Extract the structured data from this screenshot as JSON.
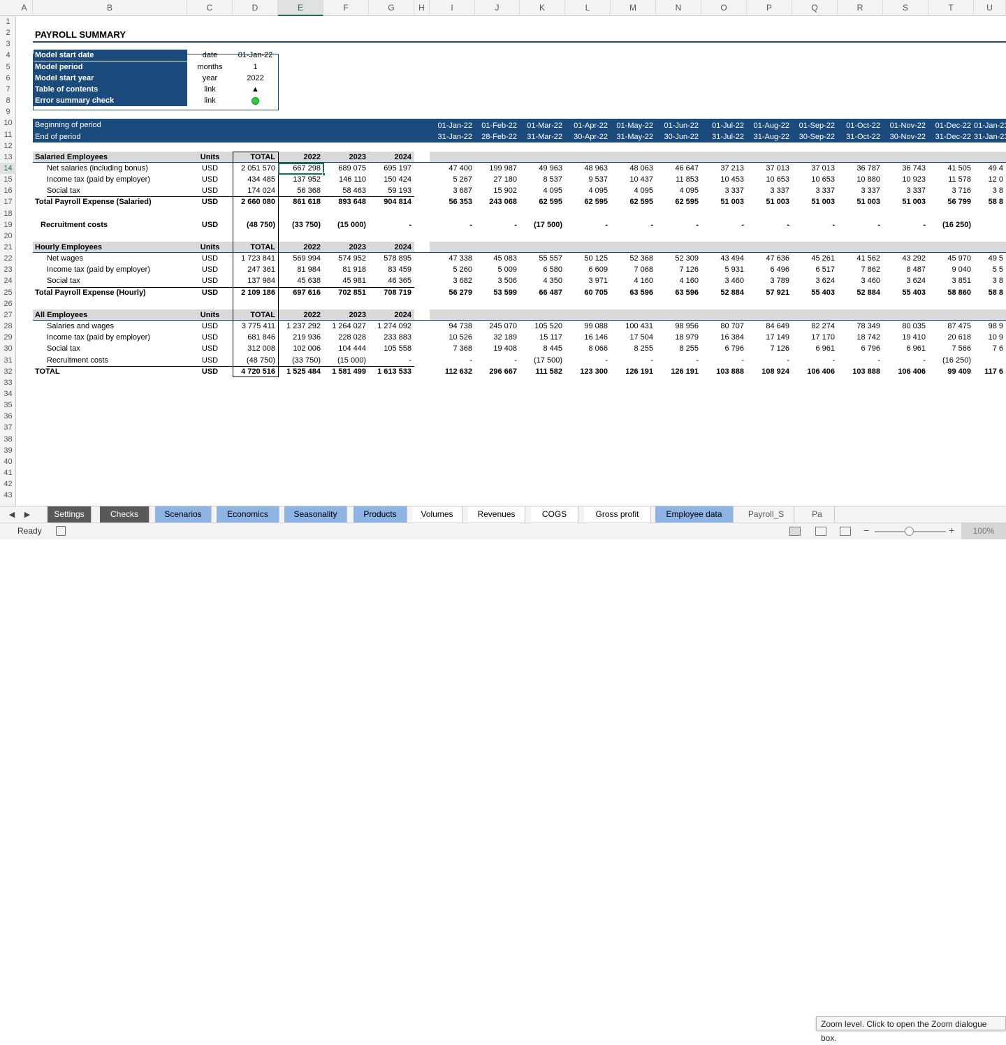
{
  "columns": [
    "A",
    "B",
    "C",
    "D",
    "E",
    "F",
    "G",
    "H",
    "I",
    "J",
    "K",
    "L",
    "M",
    "N",
    "O",
    "P",
    "Q",
    "R",
    "S",
    "T",
    "U"
  ],
  "selected_column": "E",
  "rows": [
    "1",
    "2",
    "3",
    "4",
    "5",
    "6",
    "7",
    "8",
    "9",
    "10",
    "11",
    "12",
    "13",
    "14",
    "15",
    "16",
    "17",
    "18",
    "19",
    "20",
    "21",
    "22",
    "23",
    "24",
    "25",
    "26",
    "27",
    "28",
    "29",
    "30",
    "31",
    "32",
    "33",
    "34",
    "35",
    "36",
    "37",
    "38",
    "39",
    "40",
    "41",
    "42",
    "43"
  ],
  "selected_row": "14",
  "title": "PAYROLL SUMMARY",
  "settings": [
    {
      "label": "Model start date",
      "unit": "date",
      "value": "01-Jan-22"
    },
    {
      "label": "Model period",
      "unit": "months",
      "value": "1"
    },
    {
      "label": "Model start year",
      "unit": "year",
      "value": "2022"
    },
    {
      "label": "Table of contents",
      "unit": "link",
      "value": "▲"
    },
    {
      "label": "Error summary check",
      "unit": "link",
      "value": ""
    }
  ],
  "timeline": {
    "begin_label": "Beginning of period",
    "end_label": "End of period",
    "begin": [
      "01-Jan-22",
      "01-Feb-22",
      "01-Mar-22",
      "01-Apr-22",
      "01-May-22",
      "01-Jun-22",
      "01-Jul-22",
      "01-Aug-22",
      "01-Sep-22",
      "01-Oct-22",
      "01-Nov-22",
      "01-Dec-22",
      "01-Jan-23"
    ],
    "end": [
      "31-Jan-22",
      "28-Feb-22",
      "31-Mar-22",
      "30-Apr-22",
      "31-May-22",
      "30-Jun-22",
      "31-Jul-22",
      "31-Aug-22",
      "30-Sep-22",
      "31-Oct-22",
      "30-Nov-22",
      "31-Dec-22",
      "31-Jan-23"
    ]
  },
  "header_labels": {
    "units": "Units",
    "total": "TOTAL",
    "y2022": "2022",
    "y2023": "2023",
    "y2024": "2024"
  },
  "salaried": {
    "title": "Salaried Employees",
    "rows": [
      {
        "label": "Net salaries (including bonus)",
        "units": "USD",
        "total": "2 051 570",
        "y": [
          "667 298",
          "689 075",
          "695 197"
        ],
        "m": [
          "47 400",
          "199 987",
          "49 963",
          "48 963",
          "48 063",
          "46 647",
          "37 213",
          "37 013",
          "37 013",
          "36 787",
          "36 743",
          "41 505",
          "49 4"
        ]
      },
      {
        "label": "Income tax (paid by employer)",
        "units": "USD",
        "total": "434 485",
        "y": [
          "137 952",
          "146 110",
          "150 424"
        ],
        "m": [
          "5 267",
          "27 180",
          "8 537",
          "9 537",
          "10 437",
          "11 853",
          "10 453",
          "10 653",
          "10 653",
          "10 880",
          "10 923",
          "11 578",
          "12 0"
        ]
      },
      {
        "label": "Social tax",
        "units": "USD",
        "total": "174 024",
        "y": [
          "56 368",
          "58 463",
          "59 193"
        ],
        "m": [
          "3 687",
          "15 902",
          "4 095",
          "4 095",
          "4 095",
          "4 095",
          "3 337",
          "3 337",
          "3 337",
          "3 337",
          "3 337",
          "3 716",
          "3 8"
        ]
      }
    ],
    "total": {
      "label": "Total Payroll Expense (Salaried)",
      "units": "USD",
      "total": "2 660 080",
      "y": [
        "861 618",
        "893 648",
        "904 814"
      ],
      "m": [
        "56 353",
        "243 068",
        "62 595",
        "62 595",
        "62 595",
        "62 595",
        "51 003",
        "51 003",
        "51 003",
        "51 003",
        "51 003",
        "56 799",
        "58 8"
      ]
    }
  },
  "recruitment": {
    "label": "Recruitment costs",
    "units": "USD",
    "total": "(48 750)",
    "y": [
      "(33 750)",
      "(15 000)",
      "-"
    ],
    "m": [
      "-",
      "-",
      "(17 500)",
      "-",
      "-",
      "-",
      "-",
      "-",
      "-",
      "-",
      "-",
      "(16 250)",
      ""
    ]
  },
  "hourly": {
    "title": "Hourly Employees",
    "rows": [
      {
        "label": "Net wages",
        "units": "USD",
        "total": "1 723 841",
        "y": [
          "569 994",
          "574 952",
          "578 895"
        ],
        "m": [
          "47 338",
          "45 083",
          "55 557",
          "50 125",
          "52 368",
          "52 309",
          "43 494",
          "47 636",
          "45 261",
          "41 562",
          "43 292",
          "45 970",
          "49 5"
        ]
      },
      {
        "label": "Income tax (paid by employer)",
        "units": "USD",
        "total": "247 361",
        "y": [
          "81 984",
          "81 918",
          "83 459"
        ],
        "m": [
          "5 260",
          "5 009",
          "6 580",
          "6 609",
          "7 068",
          "7 126",
          "5 931",
          "6 496",
          "6 517",
          "7 862",
          "8 487",
          "9 040",
          "5 5"
        ]
      },
      {
        "label": "Social tax",
        "units": "USD",
        "total": "137 984",
        "y": [
          "45 638",
          "45 981",
          "46 365"
        ],
        "m": [
          "3 682",
          "3 506",
          "4 350",
          "3 971",
          "4 160",
          "4 160",
          "3 460",
          "3 789",
          "3 624",
          "3 460",
          "3 624",
          "3 851",
          "3 8"
        ]
      }
    ],
    "total": {
      "label": "Total Payroll Expense (Hourly)",
      "units": "USD",
      "total": "2 109 186",
      "y": [
        "697 616",
        "702 851",
        "708 719"
      ],
      "m": [
        "56 279",
        "53 599",
        "66 487",
        "60 705",
        "63 596",
        "63 596",
        "52 884",
        "57 921",
        "55 403",
        "52 884",
        "55 403",
        "58 860",
        "58 8"
      ]
    }
  },
  "all": {
    "title": "All Employees",
    "rows": [
      {
        "label": "Salaries and wages",
        "units": "USD",
        "total": "3 775 411",
        "y": [
          "1 237 292",
          "1 264 027",
          "1 274 092"
        ],
        "m": [
          "94 738",
          "245 070",
          "105 520",
          "99 088",
          "100 431",
          "98 956",
          "80 707",
          "84 649",
          "82 274",
          "78 349",
          "80 035",
          "87 475",
          "98 9"
        ]
      },
      {
        "label": "Income tax (paid by employer)",
        "units": "USD",
        "total": "681 846",
        "y": [
          "219 936",
          "228 028",
          "233 883"
        ],
        "m": [
          "10 526",
          "32 189",
          "15 117",
          "16 146",
          "17 504",
          "18 979",
          "16 384",
          "17 149",
          "17 170",
          "18 742",
          "19 410",
          "20 618",
          "10 9"
        ]
      },
      {
        "label": "Social tax",
        "units": "USD",
        "total": "312 008",
        "y": [
          "102 006",
          "104 444",
          "105 558"
        ],
        "m": [
          "7 368",
          "19 408",
          "8 445",
          "8 066",
          "8 255",
          "8 255",
          "6 796",
          "7 126",
          "6 961",
          "6 796",
          "6 961",
          "7 566",
          "7 6"
        ]
      },
      {
        "label": "Recruitment costs",
        "units": "USD",
        "total": "(48 750)",
        "y": [
          "(33 750)",
          "(15 000)",
          "-"
        ],
        "m": [
          "-",
          "-",
          "(17 500)",
          "-",
          "-",
          "-",
          "-",
          "-",
          "-",
          "-",
          "-",
          "(16 250)",
          ""
        ]
      }
    ],
    "total": {
      "label": "TOTAL",
      "units": "USD",
      "total": "4 720 516",
      "y": [
        "1 525 484",
        "1 581 499",
        "1 613 533"
      ],
      "m": [
        "112 632",
        "296 667",
        "111 582",
        "123 300",
        "126 191",
        "126 191",
        "103 888",
        "108 924",
        "106 406",
        "103 888",
        "106 406",
        "99 409",
        "117 6"
      ]
    }
  },
  "tabs": [
    {
      "label": "Settings",
      "style": "dark"
    },
    {
      "label": "Checks",
      "style": "dark"
    },
    {
      "label": "Scenarios",
      "style": "blue"
    },
    {
      "label": "Economics",
      "style": "blue"
    },
    {
      "label": "Seasonality",
      "style": "blue"
    },
    {
      "label": "Products",
      "style": "blue"
    },
    {
      "label": "Volumes",
      "style": "white"
    },
    {
      "label": "Revenues",
      "style": "white"
    },
    {
      "label": "COGS",
      "style": "white"
    },
    {
      "label": "Gross profit",
      "style": "white"
    },
    {
      "label": "Employee data",
      "style": "blue"
    },
    {
      "label": "Payroll_S",
      "style": "plain"
    },
    {
      "label": "Pa",
      "style": "plain"
    }
  ],
  "tooltip": "Zoom level. Click to open the Zoom dialogue box.",
  "status": {
    "ready": "Ready",
    "zoom": "100%"
  },
  "colors": {
    "header_band": "#1b4a7c",
    "section_grey": "#d9d9d9",
    "selection": "#1e7145",
    "ok_dot": "#2ecc40"
  }
}
